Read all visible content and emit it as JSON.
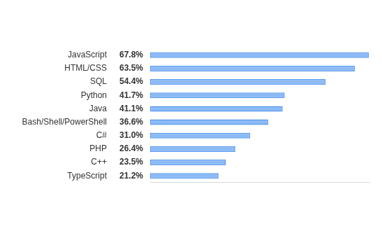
{
  "chart_data": {
    "type": "bar",
    "orientation": "horizontal",
    "categories": [
      "JavaScript",
      "HTML/CSS",
      "SQL",
      "Python",
      "Java",
      "Bash/Shell/PowerShell",
      "C#",
      "PHP",
      "C++",
      "TypeScript"
    ],
    "values": [
      67.8,
      63.5,
      54.4,
      41.7,
      41.1,
      36.6,
      31.0,
      26.4,
      23.5,
      21.2
    ],
    "value_labels": [
      "67.8%",
      "63.5%",
      "54.4%",
      "41.7%",
      "41.1%",
      "36.6%",
      "31.0%",
      "26.4%",
      "23.5%",
      "21.2%"
    ],
    "data_labels": true,
    "color": "#8cbaf5",
    "xlim": [
      0,
      68
    ],
    "grid": false,
    "tick_labels": "y"
  }
}
